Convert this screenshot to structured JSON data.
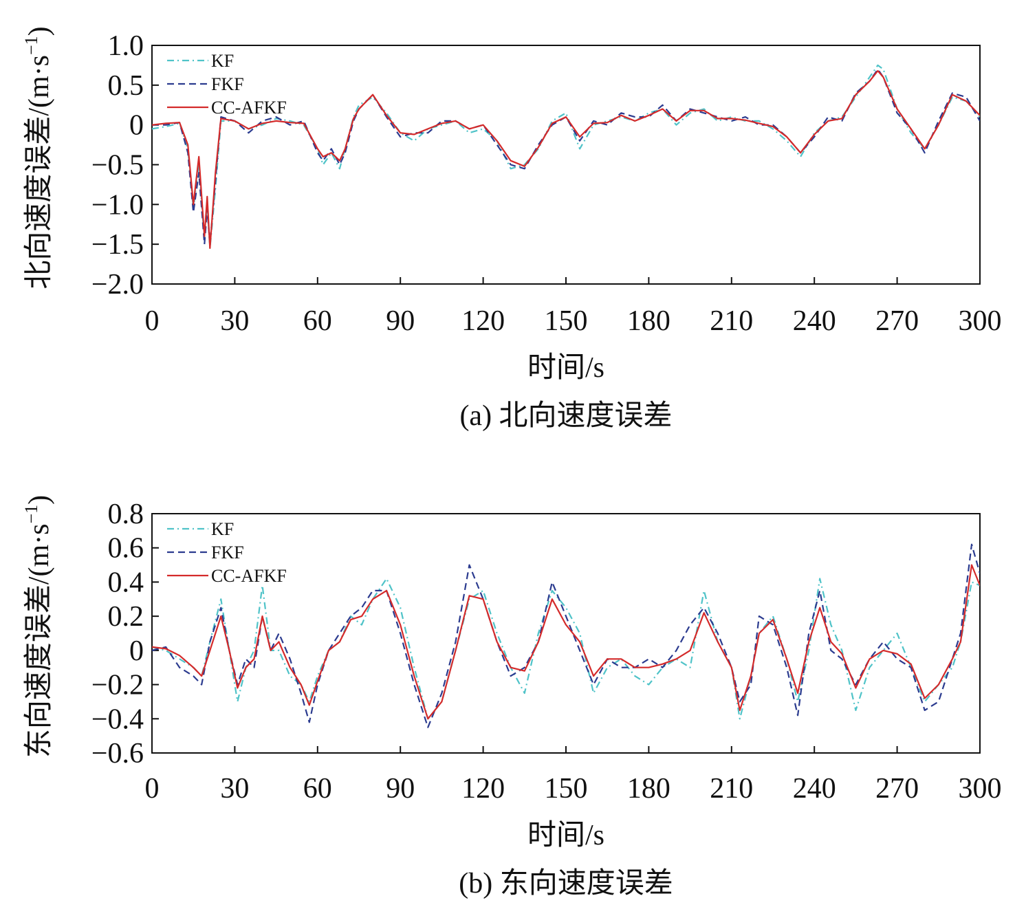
{
  "chart_data": [
    {
      "type": "line",
      "ylabel": "北向速度误差/(m·s",
      "ylabel_sup": "−1",
      "ylabel_close": ")",
      "xlabel": "时间/s",
      "caption": "(a) 北向速度误差",
      "xlim": [
        0,
        300
      ],
      "ylim": [
        -2.0,
        1.0
      ],
      "xticks": [
        0,
        30,
        60,
        90,
        120,
        150,
        180,
        210,
        240,
        270,
        300
      ],
      "xtick_labels": [
        "0",
        "30",
        "60",
        "90",
        "120",
        "150",
        "180",
        "210",
        "240",
        "270",
        "300"
      ],
      "yticks": [
        1.0,
        0.5,
        0,
        -0.5,
        -1.0,
        -1.5,
        -2.0
      ],
      "ytick_labels": [
        "1.0",
        "0.5",
        "0",
        "−0.5",
        "−1.0",
        "−1.5",
        "−2.0"
      ],
      "legend_position": "top-left",
      "grid": false,
      "x": [
        0,
        5,
        10,
        13,
        15,
        17,
        19,
        20,
        21,
        23,
        25,
        30,
        35,
        40,
        45,
        50,
        55,
        60,
        62,
        65,
        68,
        70,
        73,
        75,
        80,
        85,
        90,
        95,
        100,
        105,
        110,
        115,
        120,
        125,
        130,
        135,
        140,
        145,
        150,
        155,
        160,
        165,
        170,
        175,
        180,
        185,
        190,
        195,
        200,
        205,
        210,
        215,
        220,
        225,
        230,
        235,
        240,
        245,
        250,
        255,
        260,
        263,
        265,
        270,
        275,
        280,
        285,
        290,
        295,
        300
      ],
      "series": [
        {
          "name": "KF",
          "color": "#4fc3c8",
          "style": "dashdot",
          "values": [
            -0.05,
            -0.02,
            0.02,
            -0.3,
            -1.05,
            -0.5,
            -1.45,
            -1.0,
            -1.55,
            -0.8,
            0.05,
            0.05,
            -0.05,
            0.0,
            0.08,
            0.05,
            0.0,
            -0.3,
            -0.5,
            -0.35,
            -0.55,
            -0.3,
            0.1,
            0.25,
            0.35,
            0.15,
            -0.1,
            -0.2,
            -0.05,
            0.0,
            0.05,
            -0.1,
            -0.05,
            -0.2,
            -0.55,
            -0.5,
            -0.3,
            0.05,
            0.15,
            -0.3,
            0.0,
            0.05,
            0.1,
            0.05,
            0.15,
            0.2,
            0.0,
            0.15,
            0.2,
            0.05,
            0.1,
            0.05,
            0.05,
            -0.05,
            -0.2,
            -0.4,
            -0.1,
            0.05,
            0.1,
            0.35,
            0.6,
            0.75,
            0.7,
            0.2,
            -0.1,
            -0.3,
            0.0,
            0.35,
            0.3,
            0.1
          ]
        },
        {
          "name": "FKF",
          "color": "#2b3b8f",
          "style": "dashed",
          "values": [
            0.0,
            0.0,
            0.03,
            -0.35,
            -1.1,
            -0.6,
            -1.5,
            -1.05,
            -1.5,
            -0.7,
            0.1,
            0.05,
            -0.1,
            0.05,
            0.1,
            0.0,
            0.05,
            -0.35,
            -0.45,
            -0.3,
            -0.5,
            -0.35,
            0.05,
            0.2,
            0.38,
            0.1,
            -0.15,
            -0.1,
            -0.1,
            0.05,
            0.05,
            -0.05,
            0.0,
            -0.25,
            -0.5,
            -0.55,
            -0.25,
            0.0,
            0.1,
            -0.2,
            0.05,
            0.0,
            0.15,
            0.1,
            0.1,
            0.25,
            0.05,
            0.2,
            0.15,
            0.1,
            0.05,
            0.1,
            0.0,
            0.0,
            -0.15,
            -0.35,
            -0.15,
            0.1,
            0.05,
            0.4,
            0.55,
            0.7,
            0.6,
            0.15,
            -0.05,
            -0.35,
            0.05,
            0.4,
            0.35,
            0.05
          ]
        },
        {
          "name": "CC-AFKF",
          "color": "#d42a2a",
          "style": "solid",
          "values": [
            0.0,
            0.02,
            0.03,
            -0.25,
            -1.0,
            -0.4,
            -1.4,
            -0.9,
            -1.55,
            -0.6,
            0.08,
            0.05,
            -0.05,
            0.02,
            0.05,
            0.03,
            0.02,
            -0.3,
            -0.4,
            -0.35,
            -0.45,
            -0.3,
            0.08,
            0.2,
            0.38,
            0.12,
            -0.1,
            -0.12,
            -0.05,
            0.02,
            0.05,
            -0.05,
            0.0,
            -0.2,
            -0.45,
            -0.52,
            -0.28,
            0.02,
            0.1,
            -0.15,
            0.02,
            0.03,
            0.12,
            0.05,
            0.12,
            0.2,
            0.05,
            0.18,
            0.18,
            0.08,
            0.08,
            0.06,
            0.02,
            -0.02,
            -0.15,
            -0.35,
            -0.12,
            0.05,
            0.08,
            0.38,
            0.55,
            0.68,
            0.6,
            0.2,
            -0.05,
            -0.3,
            0.0,
            0.38,
            0.3,
            0.12
          ]
        }
      ]
    },
    {
      "type": "line",
      "ylabel": "东向速度误差/(m·s",
      "ylabel_sup": "−1",
      "ylabel_close": ")",
      "xlabel": "时间/s",
      "caption": "(b) 东向速度误差",
      "xlim": [
        0,
        300
      ],
      "ylim": [
        -0.6,
        0.8
      ],
      "xticks": [
        0,
        30,
        60,
        90,
        120,
        150,
        180,
        210,
        240,
        270,
        300
      ],
      "xtick_labels": [
        "0",
        "30",
        "60",
        "90",
        "120",
        "150",
        "180",
        "210",
        "240",
        "270",
        "300"
      ],
      "yticks": [
        0.8,
        0.6,
        0.4,
        0.2,
        0,
        -0.2,
        -0.4,
        -0.6
      ],
      "ytick_labels": [
        "0.8",
        "0.6",
        "0.4",
        "0.2",
        "0",
        "−0.2",
        "−0.4",
        "−0.6"
      ],
      "legend_position": "top-left",
      "grid": false,
      "x": [
        0,
        5,
        10,
        15,
        18,
        21,
        25,
        28,
        31,
        34,
        37,
        40,
        43,
        46,
        50,
        54,
        57,
        60,
        64,
        68,
        72,
        76,
        80,
        85,
        90,
        95,
        100,
        105,
        110,
        115,
        120,
        125,
        130,
        135,
        140,
        145,
        150,
        155,
        160,
        165,
        170,
        175,
        180,
        185,
        190,
        195,
        200,
        205,
        210,
        213,
        217,
        220,
        225,
        230,
        234,
        238,
        242,
        246,
        250,
        255,
        260,
        265,
        270,
        275,
        280,
        285,
        290,
        293,
        297,
        300
      ],
      "series": [
        {
          "name": "KF",
          "color": "#4fc3c8",
          "style": "dashdot",
          "values": [
            0.02,
            0.0,
            -0.05,
            -0.1,
            -0.15,
            0.05,
            0.3,
            0.0,
            -0.3,
            -0.1,
            0.0,
            0.38,
            0.0,
            0.0,
            -0.15,
            -0.2,
            -0.3,
            -0.15,
            0.0,
            0.05,
            0.2,
            0.15,
            0.3,
            0.42,
            0.25,
            -0.1,
            -0.4,
            -0.3,
            0.0,
            0.3,
            0.35,
            0.1,
            -0.1,
            -0.25,
            0.1,
            0.35,
            0.25,
            0.1,
            -0.25,
            -0.1,
            -0.05,
            -0.15,
            -0.2,
            -0.1,
            -0.05,
            -0.1,
            0.35,
            0.05,
            -0.1,
            -0.4,
            -0.15,
            0.1,
            0.2,
            -0.05,
            -0.3,
            0.0,
            0.42,
            0.15,
            0.0,
            -0.35,
            -0.1,
            0.0,
            0.1,
            -0.1,
            -0.3,
            -0.2,
            -0.1,
            0.05,
            0.4,
            0.38
          ]
        },
        {
          "name": "FKF",
          "color": "#2b3b8f",
          "style": "dashed",
          "values": [
            0.0,
            0.02,
            -0.1,
            -0.15,
            -0.2,
            0.05,
            0.25,
            0.0,
            -0.2,
            -0.05,
            -0.1,
            0.2,
            0.0,
            0.1,
            -0.05,
            -0.25,
            -0.42,
            -0.2,
            0.0,
            0.1,
            0.2,
            0.25,
            0.35,
            0.35,
            0.1,
            -0.2,
            -0.45,
            -0.25,
            0.05,
            0.5,
            0.3,
            0.05,
            -0.15,
            -0.1,
            0.05,
            0.4,
            0.2,
            0.0,
            -0.2,
            -0.05,
            -0.1,
            -0.1,
            -0.05,
            -0.1,
            0.0,
            0.15,
            0.25,
            0.1,
            -0.1,
            -0.3,
            -0.2,
            0.2,
            0.15,
            -0.1,
            -0.38,
            0.1,
            0.35,
            0.0,
            -0.05,
            -0.2,
            -0.05,
            0.05,
            -0.05,
            -0.1,
            -0.35,
            -0.3,
            -0.05,
            0.1,
            0.62,
            0.45
          ]
        },
        {
          "name": "CC-AFKF",
          "color": "#d42a2a",
          "style": "solid",
          "values": [
            0.02,
            0.01,
            -0.03,
            -0.1,
            -0.15,
            0.0,
            0.2,
            0.0,
            -0.22,
            -0.1,
            -0.05,
            0.2,
            0.0,
            0.05,
            -0.1,
            -0.2,
            -0.32,
            -0.18,
            0.0,
            0.05,
            0.18,
            0.2,
            0.3,
            0.35,
            0.15,
            -0.15,
            -0.4,
            -0.3,
            0.0,
            0.32,
            0.3,
            0.05,
            -0.1,
            -0.12,
            0.05,
            0.3,
            0.15,
            0.05,
            -0.15,
            -0.05,
            -0.05,
            -0.1,
            -0.1,
            -0.08,
            -0.05,
            0.0,
            0.22,
            0.05,
            -0.1,
            -0.35,
            -0.15,
            0.1,
            0.18,
            -0.05,
            -0.25,
            0.05,
            0.25,
            0.05,
            -0.02,
            -0.22,
            -0.05,
            0.0,
            -0.02,
            -0.08,
            -0.28,
            -0.2,
            -0.05,
            0.05,
            0.5,
            0.38
          ]
        }
      ]
    }
  ]
}
